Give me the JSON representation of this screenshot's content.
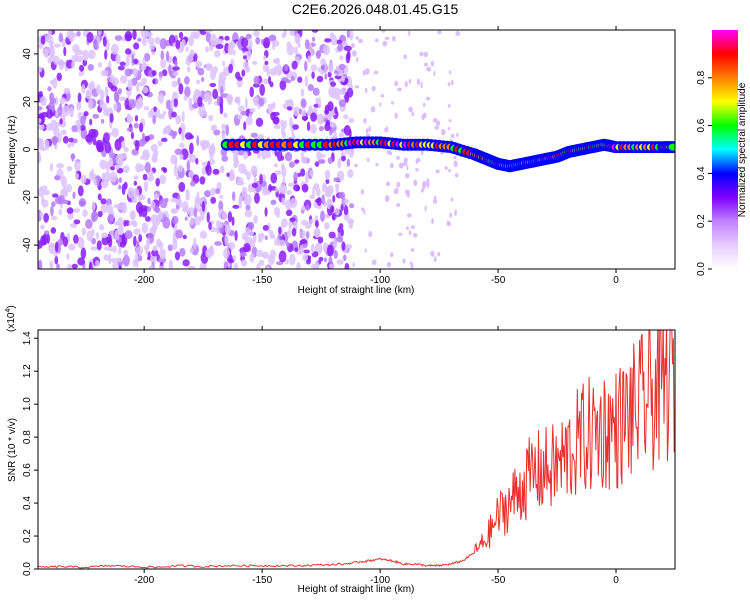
{
  "title": "C2E6.2026.048.01.45.G15",
  "chart_data": [
    {
      "type": "heatmap",
      "xlabel": "Height of straight line (km)",
      "ylabel": "Frequency (Hz)",
      "xlim": [
        -245,
        25
      ],
      "ylim": [
        -50,
        50
      ],
      "xticks": [
        -200,
        -150,
        -100,
        -50,
        0
      ],
      "yticks": [
        -40,
        -20,
        0,
        20,
        40
      ],
      "colorbar": {
        "label": "Normalized spectral amplitude",
        "range": [
          0,
          1
        ],
        "ticks": [
          "0.0",
          "0.2",
          "0.4",
          "0.6",
          "0.8"
        ],
        "colors": [
          "#ffffff",
          "#e6ccff",
          "#c080ff",
          "#8000ff",
          "#0000ff",
          "#00ffff",
          "#00ff00",
          "#ffff00",
          "#ff8000",
          "#ff0000",
          "#ff00ff"
        ]
      },
      "signal_track": {
        "x": [
          -165,
          -150,
          -135,
          -120,
          -110,
          -100,
          -90,
          -80,
          -70,
          -60,
          -55,
          -50,
          -45,
          -40,
          -35,
          -30,
          -25,
          -20,
          -15,
          -10,
          -5,
          0,
          10,
          20,
          25
        ],
        "y": [
          2,
          2,
          2,
          2,
          3,
          3,
          2,
          2,
          1,
          -2,
          -4,
          -6,
          -7,
          -6,
          -5,
          -4,
          -3,
          -1,
          0,
          1,
          2,
          1,
          1,
          1,
          1
        ]
      }
    },
    {
      "type": "line",
      "xlabel": "Height of straight line (km)",
      "ylabel": "SNR (10 * v/v)",
      "yscale_label": "(x10",
      "yscale_exp": "4",
      "xlim": [
        -245,
        25
      ],
      "ylim": [
        0,
        1.45
      ],
      "xticks": [
        -200,
        -150,
        -100,
        -50,
        0
      ],
      "yticks": [
        "0.0",
        "0.2",
        "0.4",
        "0.6",
        "0.8",
        "1.0",
        "1.2",
        "1.4"
      ],
      "color": "#e8312f",
      "series": [
        {
          "x": [
            -245,
            -235,
            -225,
            -215,
            -205,
            -195,
            -185,
            -175,
            -165,
            -155,
            -145,
            -135,
            -125,
            -115,
            -110,
            -105,
            -100,
            -95,
            -90,
            -85,
            -80,
            -75,
            -70,
            -65,
            -60,
            -55,
            -50,
            -45,
            -40,
            -35,
            -30,
            -25,
            -20,
            -15,
            -10,
            -5,
            0,
            5,
            10,
            15,
            20,
            25
          ],
          "y": [
            0.01,
            0.015,
            0.01,
            0.02,
            0.015,
            0.01,
            0.02,
            0.015,
            0.02,
            0.02,
            0.02,
            0.02,
            0.025,
            0.03,
            0.04,
            0.05,
            0.06,
            0.05,
            0.03,
            0.03,
            0.02,
            0.02,
            0.03,
            0.05,
            0.1,
            0.18,
            0.32,
            0.4,
            0.5,
            0.58,
            0.6,
            0.62,
            0.7,
            0.78,
            0.82,
            0.85,
            0.85,
            0.92,
            0.98,
            1.05,
            1.12,
            1.2
          ]
        }
      ]
    }
  ]
}
